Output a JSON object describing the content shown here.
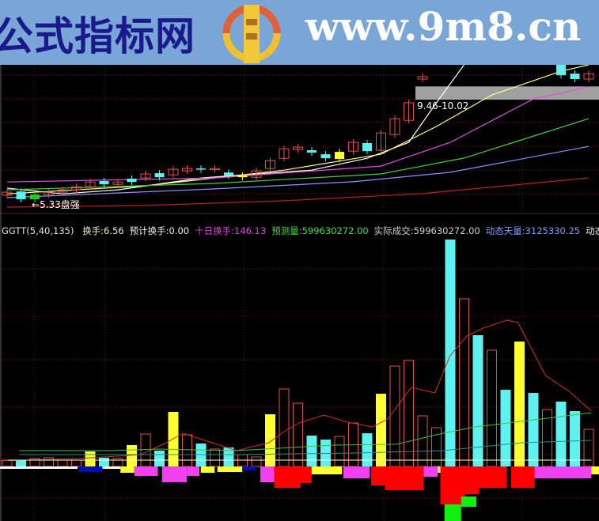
{
  "banner": {
    "site_name": "公式指标网",
    "site_url": "www.9m8.cn",
    "logo_text": "www.9m8.cn"
  },
  "indicator_header": {
    "name": "GGTT(5,40,135)",
    "items": [
      {
        "text": "换手:6.56",
        "color": "#f0f0c0"
      },
      {
        "text": "预计换手:0.00",
        "color": "#f0f0f0"
      },
      {
        "text": "十日换手:146.13",
        "color": "#e040e0"
      },
      {
        "text": "预测量:599630272.00",
        "color": "#40e040"
      },
      {
        "text": "实际成交:599630272.00",
        "color": "#d0d0d0"
      },
      {
        "text": "动态天量:3125330.25",
        "color": "#7f9fff"
      },
      {
        "text": "动态",
        "color": "#f0f0f0"
      }
    ]
  },
  "chart_data": [
    {
      "type": "candlestick",
      "pane": "price",
      "ylim": [
        4.73,
        10.93
      ],
      "grid": true,
      "annotations": {
        "range_band": {
          "low": 9.46,
          "high": 10.02,
          "label": "9.46-10.02",
          "from_bar": 30
        },
        "low_marker": {
          "label": "5.33",
          "suffix": "盘强",
          "bar": 2
        }
      },
      "candles": [
        {
          "bar": 0,
          "o": 5.43,
          "c": 5.56,
          "color": "up"
        },
        {
          "bar": 1,
          "o": 5.59,
          "c": 5.26,
          "color": "down"
        },
        {
          "bar": 2,
          "o": 5.46,
          "c": 5.26,
          "color": "green"
        },
        {
          "bar": 3,
          "o": 5.46,
          "c": 5.56,
          "color": "up"
        },
        {
          "bar": 4,
          "o": 5.56,
          "c": 5.66,
          "color": "up"
        },
        {
          "bar": 5,
          "o": 5.66,
          "c": 5.79,
          "color": "up"
        },
        {
          "bar": 6,
          "o": 5.79,
          "c": 5.99,
          "color": "up"
        },
        {
          "bar": 7,
          "o": 6.03,
          "c": 5.89,
          "color": "down"
        },
        {
          "bar": 8,
          "o": 5.89,
          "c": 5.99,
          "color": "up"
        },
        {
          "bar": 9,
          "o": 6.13,
          "c": 5.99,
          "color": "down"
        },
        {
          "bar": 10,
          "o": 6.16,
          "c": 6.33,
          "color": "up"
        },
        {
          "bar": 11,
          "o": 6.36,
          "c": 6.19,
          "color": "down"
        },
        {
          "bar": 12,
          "o": 6.29,
          "c": 6.53,
          "color": "up"
        },
        {
          "bar": 13,
          "o": 6.46,
          "c": 6.56,
          "color": "up"
        },
        {
          "bar": 14,
          "o": 6.56,
          "c": 6.53,
          "color": "down"
        },
        {
          "bar": 15,
          "o": 6.53,
          "c": 6.56,
          "color": "up"
        },
        {
          "bar": 16,
          "o": 6.39,
          "c": 6.26,
          "color": "down"
        },
        {
          "bar": 17,
          "o": 6.26,
          "c": 6.19,
          "color": "yellow"
        },
        {
          "bar": 18,
          "o": 6.19,
          "c": 6.46,
          "color": "up"
        },
        {
          "bar": 19,
          "o": 6.56,
          "c": 6.89,
          "color": "up"
        },
        {
          "bar": 20,
          "o": 6.99,
          "c": 7.39,
          "color": "up"
        },
        {
          "bar": 21,
          "o": 7.36,
          "c": 7.46,
          "color": "up"
        },
        {
          "bar": 22,
          "o": 7.33,
          "c": 7.23,
          "color": "down"
        },
        {
          "bar": 23,
          "o": 7.16,
          "c": 6.99,
          "color": "down"
        },
        {
          "bar": 24,
          "o": 7.26,
          "c": 6.96,
          "color": "yellow"
        },
        {
          "bar": 25,
          "o": 7.29,
          "c": 7.66,
          "color": "up"
        },
        {
          "bar": 26,
          "o": 7.63,
          "c": 7.29,
          "color": "down"
        },
        {
          "bar": 27,
          "o": 7.33,
          "c": 8.06,
          "color": "up"
        },
        {
          "bar": 28,
          "o": 7.99,
          "c": 8.66,
          "color": "up"
        },
        {
          "bar": 29,
          "o": 8.59,
          "c": 9.33,
          "color": "up"
        },
        {
          "bar": 30,
          "o": 10.33,
          "c": 10.43,
          "color": "up"
        },
        {
          "bar": 40,
          "o": 10.93,
          "c": 10.49,
          "color": "down"
        },
        {
          "bar": 41,
          "o": 10.56,
          "c": 10.33,
          "color": "down"
        },
        {
          "bar": 42,
          "o": 10.33,
          "c": 10.56,
          "color": "up"
        }
      ],
      "lines": [
        {
          "color": "#ffffff",
          "points": [
            [
              0,
              5.73
            ],
            [
              4,
              5.49
            ],
            [
              8,
              5.66
            ],
            [
              14,
              6.16
            ],
            [
              18,
              6.33
            ],
            [
              22,
              6.49
            ],
            [
              26,
              6.99
            ],
            [
              29,
              7.66
            ],
            [
              31,
              9.33
            ],
            [
              33,
              10.93
            ]
          ]
        },
        {
          "color": "#ffff80",
          "points": [
            [
              0,
              5.49
            ],
            [
              10,
              5.83
            ],
            [
              20,
              6.49
            ],
            [
              27,
              7.16
            ],
            [
              31,
              8.33
            ],
            [
              35,
              9.66
            ],
            [
              40,
              10.66
            ],
            [
              42,
              10.93
            ]
          ]
        },
        {
          "color": "#e050e0",
          "points": [
            [
              0,
              5.99
            ],
            [
              15,
              6.16
            ],
            [
              27,
              6.66
            ],
            [
              32,
              7.66
            ],
            [
              38,
              9.49
            ],
            [
              42,
              10.0
            ]
          ]
        },
        {
          "color": "#40d040",
          "points": [
            [
              0,
              5.66
            ],
            [
              15,
              5.93
            ],
            [
              27,
              6.33
            ],
            [
              33,
              7.0
            ],
            [
              42,
              8.66
            ]
          ]
        },
        {
          "color": "#9090ff",
          "points": [
            [
              0,
              5.33
            ],
            [
              15,
              5.7
            ],
            [
              25,
              6.0
            ],
            [
              32,
              6.4
            ],
            [
              42,
              7.49
            ]
          ]
        },
        {
          "color": "#c02020",
          "points": [
            [
              0,
              4.93
            ],
            [
              10,
              5.0
            ],
            [
              20,
              5.2
            ],
            [
              30,
              5.5
            ],
            [
              42,
              6.16
            ]
          ]
        }
      ]
    },
    {
      "type": "bar",
      "pane": "volume",
      "ylim": [
        -70,
        300
      ],
      "grid": true,
      "bars": [
        {
          "v": 8,
          "s": "outline"
        },
        {
          "v": 8,
          "s": "cyan"
        },
        {
          "v": 10,
          "s": "outline"
        },
        {
          "v": 11,
          "s": "outline"
        },
        {
          "v": 8,
          "s": "outline"
        },
        {
          "v": 8,
          "s": "outline"
        },
        {
          "v": 19,
          "s": "yellow"
        },
        {
          "v": 11,
          "s": "cyan"
        },
        {
          "v": 10,
          "s": "outline"
        },
        {
          "v": 27,
          "s": "yellow"
        },
        {
          "v": 41,
          "s": "outline"
        },
        {
          "v": 20,
          "s": "cyan"
        },
        {
          "v": 69,
          "s": "yellow"
        },
        {
          "v": 40,
          "s": "outline"
        },
        {
          "v": 29,
          "s": "cyan"
        },
        {
          "v": 22,
          "s": "outline"
        },
        {
          "v": 24,
          "s": "cyan"
        },
        {
          "v": 15,
          "s": "outline"
        },
        {
          "v": 12,
          "s": "outline"
        },
        {
          "v": 66,
          "s": "yellow"
        },
        {
          "v": 98,
          "s": "outline"
        },
        {
          "v": 80,
          "s": "outline"
        },
        {
          "v": 39,
          "s": "cyan"
        },
        {
          "v": 34,
          "s": "cyan"
        },
        {
          "v": 38,
          "s": "outline"
        },
        {
          "v": 55,
          "s": "outline"
        },
        {
          "v": 42,
          "s": "cyan"
        },
        {
          "v": 92,
          "s": "yellow"
        },
        {
          "v": 127,
          "s": "outline"
        },
        {
          "v": 134,
          "s": "outline"
        },
        {
          "v": 64,
          "s": "outline"
        },
        {
          "v": 49,
          "s": "outline"
        },
        {
          "v": 287,
          "s": "cyan"
        },
        {
          "v": 212,
          "s": "outline"
        },
        {
          "v": 166,
          "s": "cyan"
        },
        {
          "v": 147,
          "s": "outline"
        },
        {
          "v": 97,
          "s": "cyan"
        },
        {
          "v": 158,
          "s": "yellow"
        },
        {
          "v": 93,
          "s": "cyan"
        },
        {
          "v": 72,
          "s": "outline"
        },
        {
          "v": 82,
          "s": "cyan"
        },
        {
          "v": 70,
          "s": "cyan"
        },
        {
          "v": 47,
          "s": "outline"
        }
      ],
      "negative_blocks": [
        [
          0,
          5.6,
          0,
          3,
          "#ffffff"
        ],
        [
          5.7,
          7.4,
          0,
          7,
          "#0010b0"
        ],
        [
          7.4,
          8.7,
          0,
          3,
          "#ffffff"
        ],
        [
          8.7,
          9.7,
          0,
          8,
          "#ffff30"
        ],
        [
          9.7,
          11.4,
          0,
          12,
          "#f040f0"
        ],
        [
          11.7,
          13.5,
          0,
          20,
          "#f040f0"
        ],
        [
          13.5,
          14.4,
          0,
          12,
          "#f040f0"
        ],
        [
          14.5,
          15.5,
          0,
          8,
          "#ffff30"
        ],
        [
          15.7,
          17.5,
          0,
          7,
          "#ffff30"
        ],
        [
          17.5,
          18.5,
          0,
          5,
          "#0010b0"
        ],
        [
          18.8,
          19.8,
          0,
          20,
          "#f040f0"
        ],
        [
          19.8,
          21.7,
          0,
          27,
          "#ff0000"
        ],
        [
          21.7,
          22.5,
          0,
          21,
          "#ff0000"
        ],
        [
          22.5,
          24.7,
          0,
          10,
          "#ffff30"
        ],
        [
          24.8,
          26.7,
          0,
          15,
          "#f040f0"
        ],
        [
          26.8,
          27.8,
          0,
          24,
          "#ff0000"
        ],
        [
          27.8,
          30.6,
          0,
          30,
          "#ff0000"
        ],
        [
          30.6,
          31.6,
          0,
          13,
          "#f040f0"
        ],
        [
          31.6,
          31.8,
          0,
          8,
          "#ffff30"
        ],
        [
          31.8,
          33.6,
          0,
          48,
          "#ff0000"
        ],
        [
          33.6,
          34.6,
          0,
          35,
          "#ff0000"
        ],
        [
          34.6,
          36.6,
          0,
          27,
          "#ff0000"
        ],
        [
          32.1,
          33.3,
          48,
          69,
          "#10f010"
        ],
        [
          33.3,
          34.4,
          38,
          51,
          "#10f010"
        ],
        [
          36.9,
          38.6,
          0,
          27,
          "#ff0000"
        ],
        [
          38.6,
          42.7,
          0,
          15,
          "#f040f0"
        ],
        [
          42.7,
          43.3,
          0,
          10,
          "#ffff30"
        ]
      ],
      "lines": [
        {
          "color": "#d03020",
          "points": [
            [
              0,
              7
            ],
            [
              5.7,
              10
            ],
            [
              10.2,
              15
            ],
            [
              12,
              30
            ],
            [
              13.2,
              42
            ],
            [
              17.1,
              20
            ],
            [
              19.4,
              30
            ],
            [
              20.6,
              45
            ],
            [
              21.6,
              55
            ],
            [
              23.4,
              65
            ],
            [
              25.1,
              56
            ],
            [
              26.9,
              50
            ],
            [
              28,
              60
            ],
            [
              29.7,
              100
            ],
            [
              31.4,
              93
            ],
            [
              32.5,
              140
            ],
            [
              33.7,
              165
            ],
            [
              34.9,
              175
            ],
            [
              36.6,
              185
            ],
            [
              37.4,
              182
            ],
            [
              39.4,
              115
            ],
            [
              41.1,
              95
            ],
            [
              42.7,
              70
            ]
          ]
        },
        {
          "color": "#40c040",
          "points": [
            [
              1.4,
              20
            ],
            [
              8,
              20
            ],
            [
              11.4,
              22
            ],
            [
              17.1,
              20
            ],
            [
              24,
              27
            ],
            [
              28.6,
              28
            ],
            [
              32,
              42
            ],
            [
              34.3,
              50
            ],
            [
              40,
              62
            ],
            [
              42.7,
              68
            ]
          ]
        },
        {
          "color": "#209090",
          "points": [
            [
              1.4,
              15
            ],
            [
              8.6,
              15
            ],
            [
              17.1,
              15
            ],
            [
              25.7,
              17
            ],
            [
              32,
              20
            ],
            [
              37.7,
              30
            ],
            [
              42.7,
              33
            ]
          ]
        },
        {
          "color": "#ffffc0",
          "points": [
            [
              0.6,
              8
            ],
            [
              42.7,
              8
            ]
          ]
        }
      ]
    }
  ],
  "colors": {
    "up": "#e05050",
    "down": "#5ff0f0",
    "yellow": "#ffff30",
    "green": "#20d020",
    "grid": "#6a1a1a",
    "background": "#000000"
  }
}
